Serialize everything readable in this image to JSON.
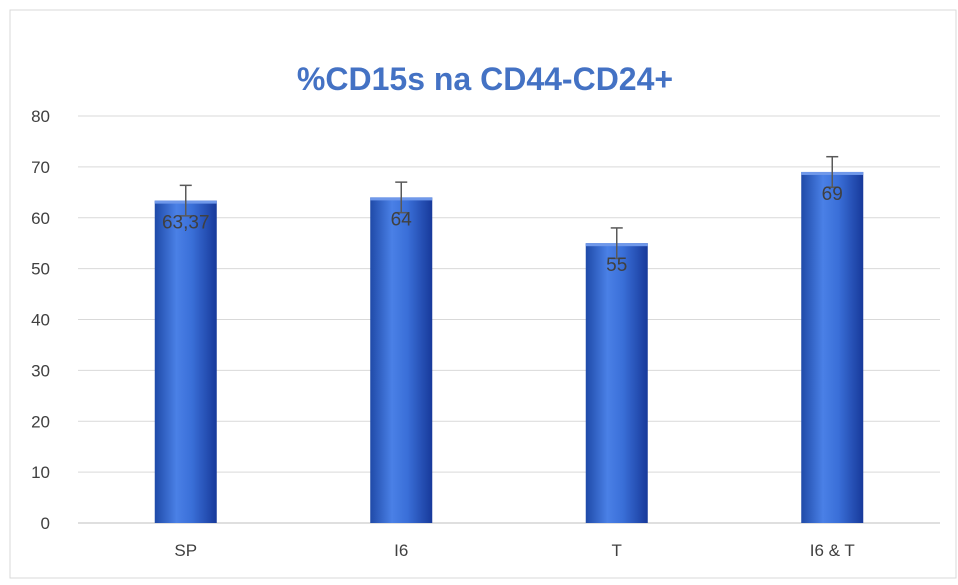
{
  "chart_data": {
    "type": "bar",
    "title": "%CD15s na CD44-CD24+",
    "categories": [
      "SP",
      "I6",
      "T",
      "I6 & T"
    ],
    "values": [
      63.37,
      64,
      55,
      69
    ],
    "value_labels": [
      "63,37",
      "64",
      "55",
      "69"
    ],
    "error": [
      3,
      3,
      3,
      3
    ],
    "ylim": [
      0,
      80
    ],
    "yticks": [
      "0",
      "10",
      "20",
      "30",
      "40",
      "50",
      "60",
      "70",
      "80"
    ],
    "xlabel": "",
    "ylabel": "",
    "grid": true,
    "legend": "none"
  },
  "colors": {
    "bar": "#3a6fd8",
    "bar_dark": "#1f4aa8",
    "bar_light": "#6f98ea",
    "title": "#4472c4",
    "grid": "#d9d9d9",
    "axis_text": "#404040",
    "error_bar": "#595959",
    "data_label": "#404040"
  }
}
